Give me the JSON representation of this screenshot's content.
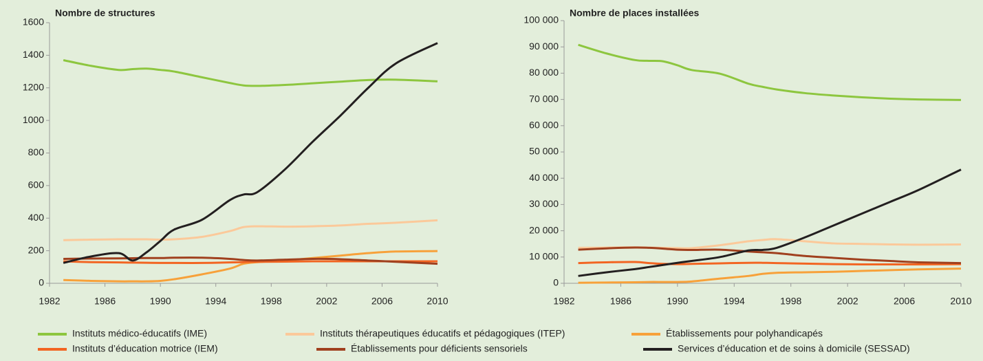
{
  "chart_data": [
    {
      "type": "line",
      "title": "Nombre de structures",
      "x": [
        1983,
        1985,
        1987,
        1988,
        1989,
        1990,
        1991,
        1993,
        1995,
        1996,
        1997,
        1999,
        2001,
        2003,
        2005,
        2007,
        2010
      ],
      "xlim": [
        1982,
        2010
      ],
      "xticks": [
        1982,
        1986,
        1990,
        1994,
        1998,
        2002,
        2006,
        2010
      ],
      "ylim": [
        0,
        1600
      ],
      "yticks": [
        0,
        200,
        400,
        600,
        800,
        1000,
        1200,
        1400,
        1600
      ],
      "series": [
        {
          "name": "Instituts médico-éducatifs (IME)",
          "color": "#8dc63f",
          "values": [
            1370,
            1335,
            1310,
            1315,
            1318,
            1310,
            1300,
            1265,
            1230,
            1215,
            1212,
            1218,
            1228,
            1238,
            1248,
            1250,
            1240
          ]
        },
        {
          "name": "Instituts thérapeutiques éducatifs et pédagogiques (ITEP)",
          "color": "#fbc99a",
          "values": [
            265,
            268,
            270,
            270,
            270,
            268,
            270,
            285,
            320,
            345,
            350,
            348,
            350,
            355,
            365,
            372,
            387
          ]
        },
        {
          "name": "Établissements pour polyhandicapés",
          "color": "#f7a13a",
          "values": [
            20,
            15,
            12,
            12,
            12,
            15,
            25,
            55,
            90,
            120,
            130,
            140,
            155,
            170,
            185,
            195,
            198
          ]
        },
        {
          "name": "Instituts d’éducation motrice (IEM)",
          "color": "#f26522",
          "values": [
            135,
            130,
            128,
            127,
            126,
            125,
            125,
            125,
            128,
            130,
            132,
            133,
            135,
            135,
            135,
            135,
            135
          ]
        },
        {
          "name": "Établissements pour déficients sensoriels",
          "color": "#a0401e",
          "values": [
            150,
            152,
            153,
            154,
            155,
            155,
            157,
            157,
            150,
            143,
            140,
            145,
            150,
            148,
            140,
            132,
            120
          ]
        },
        {
          "name": "Services d’éducation et de soins à domicile (SESSAD)",
          "color": "#231f20",
          "values": [
            125,
            165,
            185,
            140,
            190,
            260,
            330,
            390,
            510,
            545,
            560,
            700,
            870,
            1030,
            1200,
            1350,
            1475
          ]
        }
      ]
    },
    {
      "type": "line",
      "title": "Nombre de places installées",
      "x": [
        1983,
        1985,
        1987,
        1988,
        1989,
        1990,
        1991,
        1993,
        1995,
        1996,
        1997,
        1999,
        2001,
        2003,
        2005,
        2007,
        2010
      ],
      "xlim": [
        1982,
        2010
      ],
      "xticks": [
        1982,
        1986,
        1990,
        1994,
        1998,
        2002,
        2006,
        2010
      ],
      "ylim": [
        0,
        100000
      ],
      "yticks": [
        0,
        {
          "value": 10000,
          "label": "10 000"
        },
        {
          "value": 20000,
          "label": "20 000"
        },
        {
          "value": 30000,
          "label": "30 000"
        },
        {
          "value": 40000,
          "label": "40 000"
        },
        {
          "value": 50000,
          "label": "50 000"
        },
        {
          "value": 60000,
          "label": "60 000"
        },
        {
          "value": 70000,
          "label": "70 000"
        },
        {
          "value": 80000,
          "label": "80 000"
        },
        {
          "value": 90000,
          "label": "90 000"
        },
        {
          "value": 100000,
          "label": "100 000"
        }
      ],
      "series": [
        {
          "color": "#8dc63f",
          "values": [
            90800,
            87500,
            85000,
            84700,
            84500,
            83000,
            81200,
            79800,
            76000,
            74800,
            73800,
            72400,
            71500,
            70800,
            70300,
            70000,
            69800
          ]
        },
        {
          "color": "#fbc99a",
          "values": [
            13500,
            13600,
            13700,
            13600,
            13500,
            13400,
            13400,
            14500,
            16000,
            16500,
            16800,
            16000,
            15200,
            15000,
            14800,
            14700,
            14800
          ]
        },
        {
          "color": "#f7a13a",
          "values": [
            200,
            300,
            400,
            500,
            500,
            500,
            700,
            1800,
            2800,
            3600,
            4000,
            4200,
            4400,
            4700,
            5000,
            5300,
            5600
          ]
        },
        {
          "color": "#f26522",
          "values": [
            7700,
            8000,
            8100,
            7700,
            7400,
            7300,
            7400,
            7600,
            7800,
            7800,
            7700,
            7500,
            7300,
            7200,
            7200,
            7200,
            7300
          ]
        },
        {
          "color": "#a0401e",
          "values": [
            12800,
            13300,
            13600,
            13500,
            13200,
            12800,
            12700,
            12800,
            12100,
            11800,
            11500,
            10400,
            9700,
            9000,
            8500,
            8000,
            7700
          ]
        },
        {
          "color": "#231f20",
          "values": [
            2800,
            4200,
            5400,
            6200,
            7000,
            7800,
            8500,
            10000,
            12500,
            12700,
            13500,
            17500,
            22000,
            26500,
            31000,
            35500,
            43300
          ]
        }
      ]
    }
  ]
}
